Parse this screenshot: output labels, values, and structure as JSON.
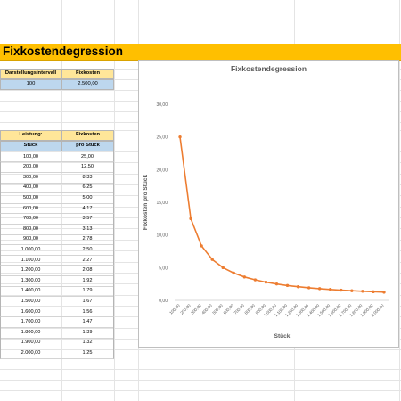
{
  "title": "Fixkostendegression",
  "top_table": {
    "headers": [
      "Darstellungsintervall",
      "Fixkosten"
    ],
    "values": [
      "100",
      "2.500,00"
    ]
  },
  "main_table": {
    "header_row1": [
      "Leistung:",
      "Fixkosten"
    ],
    "header_row2": [
      "Stück",
      "pro Stück"
    ],
    "rows": [
      [
        "100,00",
        "25,00"
      ],
      [
        "200,00",
        "12,50"
      ],
      [
        "300,00",
        "8,33"
      ],
      [
        "400,00",
        "6,25"
      ],
      [
        "500,00",
        "5,00"
      ],
      [
        "600,00",
        "4,17"
      ],
      [
        "700,00",
        "3,57"
      ],
      [
        "800,00",
        "3,13"
      ],
      [
        "900,00",
        "2,78"
      ],
      [
        "1.000,00",
        "2,50"
      ],
      [
        "1.100,00",
        "2,27"
      ],
      [
        "1.200,00",
        "2,08"
      ],
      [
        "1.300,00",
        "1,92"
      ],
      [
        "1.400,00",
        "1,79"
      ],
      [
        "1.500,00",
        "1,67"
      ],
      [
        "1.600,00",
        "1,56"
      ],
      [
        "1.700,00",
        "1,47"
      ],
      [
        "1.800,00",
        "1,39"
      ],
      [
        "1.900,00",
        "1,32"
      ],
      [
        "2.000,00",
        "1,25"
      ]
    ]
  },
  "chart_data": {
    "type": "line",
    "title": "Fixkostendegression",
    "xlabel": "Stück",
    "ylabel": "Fixkosten pro Stück",
    "categories": [
      "100,00",
      "200,00",
      "300,00",
      "400,00",
      "500,00",
      "600,00",
      "700,00",
      "800,00",
      "900,00",
      "1.000,00",
      "1.100,00",
      "1.200,00",
      "1.300,00",
      "1.400,00",
      "1.500,00",
      "1.600,00",
      "1.700,00",
      "1.800,00",
      "1.900,00",
      "2.000,00"
    ],
    "series": [
      {
        "values": [
          25.0,
          12.5,
          8.33,
          6.25,
          5.0,
          4.17,
          3.57,
          3.13,
          2.78,
          2.5,
          2.27,
          2.08,
          1.92,
          1.79,
          1.67,
          1.56,
          1.47,
          1.39,
          1.32,
          1.25
        ]
      }
    ],
    "yticks": [
      "0,00",
      "5,00",
      "10,00",
      "15,00",
      "20,00",
      "25,00",
      "30,00"
    ],
    "ylim": [
      0,
      30
    ],
    "grid": false,
    "legend": "none",
    "line_color": "#ed7d31"
  }
}
